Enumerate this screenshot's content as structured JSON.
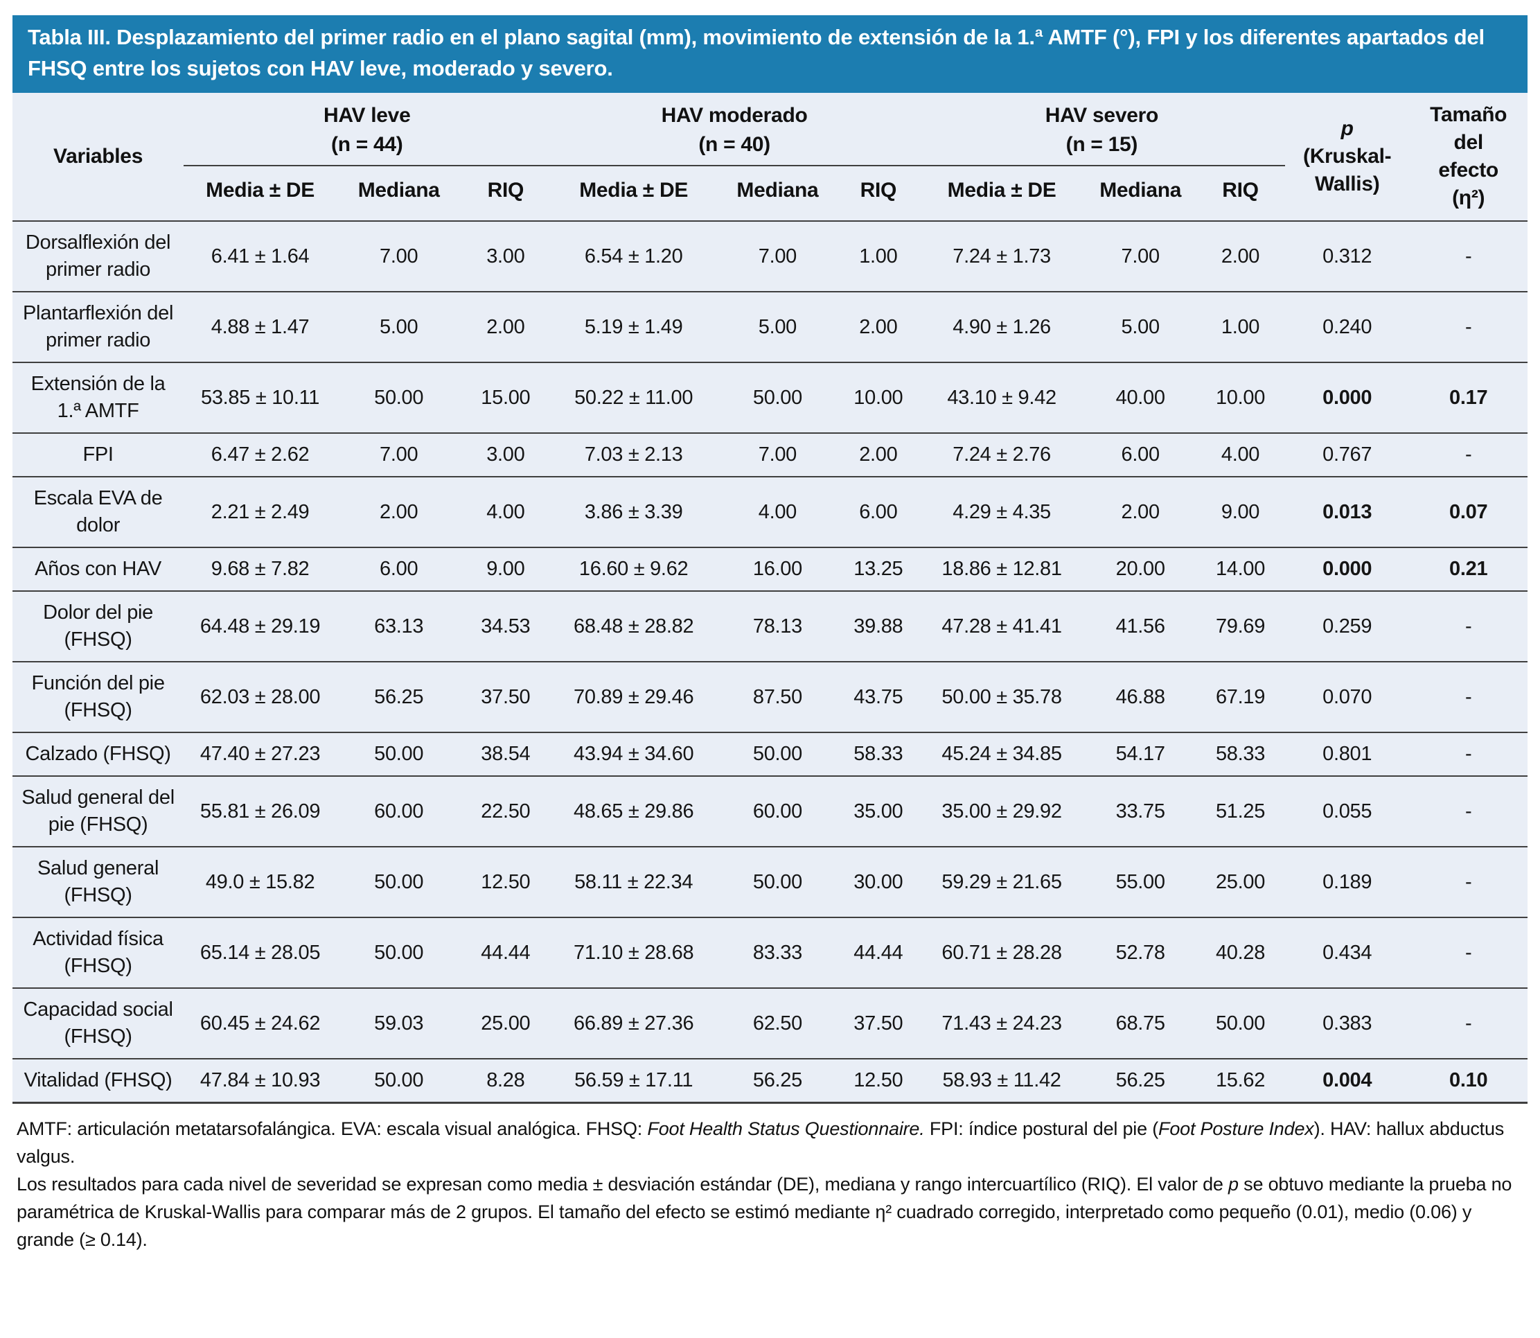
{
  "title": "Tabla III. Desplazamiento del primer radio en el plano sagital (mm), movimiento de extensión de la 1.ª AMTF (°), FPI y los diferentes apartados del FHSQ entre los sujetos con HAV leve, moderado y severo.",
  "accent_color": "#1c7db0",
  "body_background": "#e9eef6",
  "table": {
    "variables_header": "Variables",
    "groups": [
      {
        "name": "HAV leve",
        "n_label": "(n = 44)"
      },
      {
        "name": "HAV moderado",
        "n_label": "(n = 40)"
      },
      {
        "name": "HAV severo",
        "n_label": "(n = 15)"
      }
    ],
    "sub_headers": [
      "Media ± DE",
      "Mediana",
      "RIQ"
    ],
    "p_header": {
      "symbol": "p",
      "test_line1": "(Kruskal-",
      "test_line2": "Wallis)"
    },
    "effect_header": {
      "lines": [
        "Tamaño",
        "del",
        "efecto",
        "(η²)"
      ]
    },
    "rows": [
      {
        "variable": "Dorsalflexión del primer radio",
        "values": [
          "6.41 ± 1.64",
          "7.00",
          "3.00",
          "6.54 ± 1.20",
          "7.00",
          "1.00",
          "7.24 ± 1.73",
          "7.00",
          "2.00"
        ],
        "p": "0.312",
        "effect": "-",
        "significant": false
      },
      {
        "variable": "Plantarflexión del primer radio",
        "values": [
          "4.88 ± 1.47",
          "5.00",
          "2.00",
          "5.19 ± 1.49",
          "5.00",
          "2.00",
          "4.90 ± 1.26",
          "5.00",
          "1.00"
        ],
        "p": "0.240",
        "effect": "-",
        "significant": false
      },
      {
        "variable": "Extensión de la 1.ª AMTF",
        "values": [
          "53.85 ± 10.11",
          "50.00",
          "15.00",
          "50.22 ± 11.00",
          "50.00",
          "10.00",
          "43.10 ± 9.42",
          "40.00",
          "10.00"
        ],
        "p": "0.000",
        "effect": "0.17",
        "significant": true
      },
      {
        "variable": "FPI",
        "values": [
          "6.47 ± 2.62",
          "7.00",
          "3.00",
          "7.03 ± 2.13",
          "7.00",
          "2.00",
          "7.24 ± 2.76",
          "6.00",
          "4.00"
        ],
        "p": "0.767",
        "effect": "-",
        "significant": false
      },
      {
        "variable": "Escala EVA de dolor",
        "values": [
          "2.21 ± 2.49",
          "2.00",
          "4.00",
          "3.86 ± 3.39",
          "4.00",
          "6.00",
          "4.29 ± 4.35",
          "2.00",
          "9.00"
        ],
        "p": "0.013",
        "effect": "0.07",
        "significant": true
      },
      {
        "variable": "Años con HAV",
        "values": [
          "9.68 ± 7.82",
          "6.00",
          "9.00",
          "16.60 ± 9.62",
          "16.00",
          "13.25",
          "18.86 ± 12.81",
          "20.00",
          "14.00"
        ],
        "p": "0.000",
        "effect": "0.21",
        "significant": true
      },
      {
        "variable": "Dolor del pie (FHSQ)",
        "values": [
          "64.48 ± 29.19",
          "63.13",
          "34.53",
          "68.48 ± 28.82",
          "78.13",
          "39.88",
          "47.28 ± 41.41",
          "41.56",
          "79.69"
        ],
        "p": "0.259",
        "effect": "-",
        "significant": false
      },
      {
        "variable": "Función del pie (FHSQ)",
        "values": [
          "62.03 ± 28.00",
          "56.25",
          "37.50",
          "70.89 ± 29.46",
          "87.50",
          "43.75",
          "50.00 ± 35.78",
          "46.88",
          "67.19"
        ],
        "p": "0.070",
        "effect": "-",
        "significant": false
      },
      {
        "variable": "Calzado (FHSQ)",
        "values": [
          "47.40 ± 27.23",
          "50.00",
          "38.54",
          "43.94 ± 34.60",
          "50.00",
          "58.33",
          "45.24 ± 34.85",
          "54.17",
          "58.33"
        ],
        "p": "0.801",
        "effect": "-",
        "significant": false
      },
      {
        "variable": "Salud general del pie (FHSQ)",
        "values": [
          "55.81 ± 26.09",
          "60.00",
          "22.50",
          "48.65 ± 29.86",
          "60.00",
          "35.00",
          "35.00 ± 29.92",
          "33.75",
          "51.25"
        ],
        "p": "0.055",
        "effect": "-",
        "significant": false
      },
      {
        "variable": "Salud general (FHSQ)",
        "values": [
          "49.0 ± 15.82",
          "50.00",
          "12.50",
          "58.11 ± 22.34",
          "50.00",
          "30.00",
          "59.29 ± 21.65",
          "55.00",
          "25.00"
        ],
        "p": "0.189",
        "effect": "-",
        "significant": false
      },
      {
        "variable": "Actividad física (FHSQ)",
        "values": [
          "65.14 ± 28.05",
          "50.00",
          "44.44",
          "71.10 ± 28.68",
          "83.33",
          "44.44",
          "60.71 ± 28.28",
          "52.78",
          "40.28"
        ],
        "p": "0.434",
        "effect": "-",
        "significant": false
      },
      {
        "variable": "Capacidad social (FHSQ)",
        "values": [
          "60.45 ± 24.62",
          "59.03",
          "25.00",
          "66.89 ± 27.36",
          "62.50",
          "37.50",
          "71.43 ± 24.23",
          "68.75",
          "50.00"
        ],
        "p": "0.383",
        "effect": "-",
        "significant": false
      },
      {
        "variable": "Vitalidad (FHSQ)",
        "values": [
          "47.84 ± 10.93",
          "50.00",
          "8.28",
          "56.59 ± 17.11",
          "56.25",
          "12.50",
          "58.93 ± 11.42",
          "56.25",
          "15.62"
        ],
        "p": "0.004",
        "effect": "0.10",
        "significant": true
      }
    ]
  },
  "footnotes": [
    [
      {
        "text": "AMTF: articulación metatarsofalángica. EVA: escala visual analógica. FHSQ: ",
        "italic": false
      },
      {
        "text": "Foot Health Status Questionnaire.",
        "italic": true
      },
      {
        "text": " FPI: índice postural del pie (",
        "italic": false
      },
      {
        "text": "Foot Posture Index",
        "italic": true
      },
      {
        "text": "). HAV: hallux abductus valgus.",
        "italic": false
      }
    ],
    [
      {
        "text": "Los resultados para cada nivel de severidad se expresan como media ± desviación estándar (DE), mediana y rango intercuartílico (RIQ). El valor de ",
        "italic": false
      },
      {
        "text": "p",
        "italic": true
      },
      {
        "text": " se obtuvo mediante la prueba no paramétrica de Kruskal-Wallis para comparar más de 2 grupos. El tamaño del efecto se estimó mediante η² cuadrado corregido, interpretado como pequeño (0.01), medio (0.06) y grande (≥ 0.14).",
        "italic": false
      }
    ]
  ]
}
